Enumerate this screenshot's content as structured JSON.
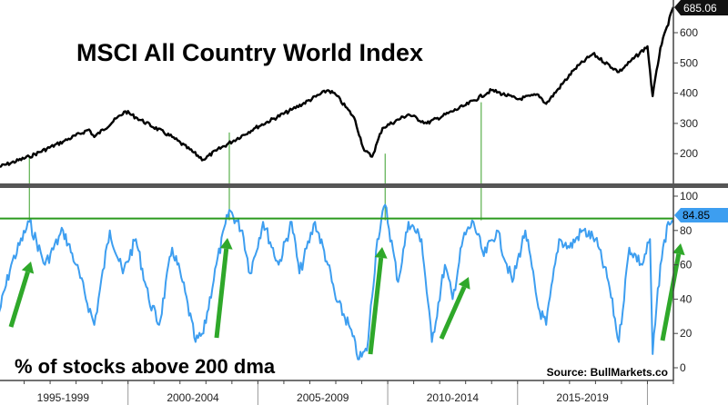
{
  "chart_data": [
    {
      "type": "line",
      "title": "MSCI All Country World Index",
      "ylim": [
        100,
        700
      ],
      "yticks": [
        200,
        300,
        400,
        500,
        600
      ],
      "last_value_label": "685.06",
      "line_color": "#000000",
      "x": [
        1995.0,
        1996.2,
        1997.5,
        1998.5,
        1998.7,
        1999.9,
        2000.3,
        2001.7,
        2002.9,
        2003.4,
        2004.9,
        2006.3,
        2007.7,
        2008.0,
        2008.7,
        2009.1,
        2009.4,
        2009.8,
        2010.8,
        2011.5,
        2013.0,
        2014.0,
        2015.0,
        2015.8,
        2016.1,
        2017.2,
        2017.9,
        2018.9,
        2020.0,
        2020.2,
        2020.5,
        2021.0
      ],
      "values": [
        155,
        190,
        240,
        280,
        255,
        340,
        320,
        255,
        180,
        210,
        285,
        345,
        410,
        395,
        320,
        210,
        190,
        285,
        330,
        300,
        360,
        410,
        380,
        395,
        365,
        480,
        530,
        470,
        555,
        390,
        550,
        685
      ]
    },
    {
      "type": "line",
      "title": "% of stocks above 200 dma",
      "ylim": [
        0,
        105
      ],
      "yticks": [
        0,
        20,
        40,
        60,
        80,
        100
      ],
      "last_value_label": "84.85",
      "threshold": 87,
      "line_color": "#3d9ef0",
      "threshold_color": "#2a9a1e",
      "x": [
        1995.0,
        1995.5,
        1996.2,
        1996.8,
        1997.5,
        1998.0,
        1998.7,
        1999.3,
        1999.8,
        2000.3,
        2000.8,
        2001.2,
        2001.7,
        2002.1,
        2002.6,
        2002.9,
        2003.4,
        2003.9,
        2004.4,
        2004.7,
        2005.2,
        2005.8,
        2006.3,
        2006.6,
        2007.2,
        2007.7,
        2008.0,
        2008.5,
        2008.9,
        2009.2,
        2009.6,
        2009.9,
        2010.4,
        2010.8,
        2011.3,
        2011.7,
        2012.2,
        2012.5,
        2012.9,
        2013.3,
        2013.7,
        2014.2,
        2014.8,
        2015.3,
        2015.8,
        2016.1,
        2016.6,
        2017.0,
        2017.5,
        2018.0,
        2018.5,
        2018.9,
        2019.3,
        2019.8,
        2020.1,
        2020.2,
        2020.5,
        2020.8,
        2021.0
      ],
      "values": [
        30,
        60,
        85,
        60,
        80,
        60,
        25,
        80,
        55,
        75,
        40,
        25,
        70,
        50,
        15,
        20,
        60,
        92,
        80,
        55,
        85,
        60,
        85,
        55,
        85,
        60,
        40,
        25,
        5,
        10,
        75,
        95,
        50,
        85,
        75,
        15,
        60,
        40,
        75,
        85,
        65,
        80,
        50,
        80,
        35,
        25,
        75,
        70,
        80,
        75,
        50,
        15,
        70,
        60,
        75,
        8,
        60,
        85,
        84.85
      ]
    }
  ],
  "x_axis": {
    "range": [
      1995,
      2021
    ],
    "period_labels": [
      "1995-1999",
      "2000-2004",
      "2005-2009",
      "2010-2014",
      "2015-2019"
    ]
  },
  "source": "Source: BullMarkets.co"
}
